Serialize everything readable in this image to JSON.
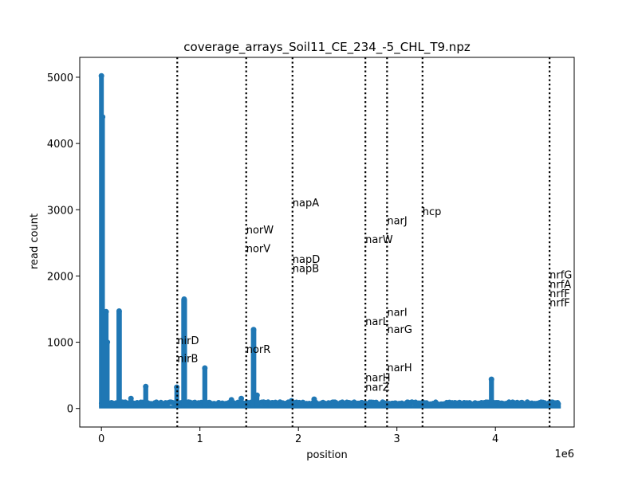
{
  "chart_data": {
    "type": "scatter",
    "title": "coverage_arrays_Soil11_CE_234_-5_CHL_T9.npz",
    "xlabel": "position",
    "ylabel": "read count",
    "x_offset_label": "1e6",
    "xlim": [
      -220000,
      4800000
    ],
    "ylim": [
      -280,
      5300
    ],
    "xticks": [
      {
        "value": 0,
        "label": "0"
      },
      {
        "value": 1000000,
        "label": "1"
      },
      {
        "value": 2000000,
        "label": "2"
      },
      {
        "value": 3000000,
        "label": "3"
      },
      {
        "value": 4000000,
        "label": "4"
      }
    ],
    "yticks": [
      {
        "value": 0,
        "label": "0"
      },
      {
        "value": 1000,
        "label": "1000"
      },
      {
        "value": 2000,
        "label": "2000"
      },
      {
        "value": 3000,
        "label": "3000"
      },
      {
        "value": 4000,
        "label": "4000"
      },
      {
        "value": 5000,
        "label": "5000"
      }
    ],
    "series_color": "#1f77b4",
    "baseline": 25,
    "peaks": [
      {
        "x": 0,
        "y": 5020,
        "w": 8000
      },
      {
        "x": 12000,
        "y": 4400,
        "w": 6000
      },
      {
        "x": 30000,
        "y": 1200,
        "w": 8000
      },
      {
        "x": 48000,
        "y": 1460,
        "w": 8000
      },
      {
        "x": 60000,
        "y": 1000,
        "w": 6000
      },
      {
        "x": 180000,
        "y": 1470,
        "w": 14000
      },
      {
        "x": 300000,
        "y": 150,
        "w": 6000
      },
      {
        "x": 450000,
        "y": 330,
        "w": 10000
      },
      {
        "x": 765000,
        "y": 320,
        "w": 8000
      },
      {
        "x": 840000,
        "y": 1650,
        "w": 18000
      },
      {
        "x": 1050000,
        "y": 610,
        "w": 10000
      },
      {
        "x": 1320000,
        "y": 130,
        "w": 6000
      },
      {
        "x": 1420000,
        "y": 150,
        "w": 6000
      },
      {
        "x": 1545000,
        "y": 1190,
        "w": 14000
      },
      {
        "x": 1580000,
        "y": 200,
        "w": 6000
      },
      {
        "x": 1930000,
        "y": 115,
        "w": 6000
      },
      {
        "x": 2160000,
        "y": 140,
        "w": 6000
      },
      {
        "x": 2590000,
        "y": 70,
        "w": 6000
      },
      {
        "x": 3960000,
        "y": 440,
        "w": 10000
      }
    ],
    "gene_lines": [
      {
        "x": 770000,
        "genes": [
          {
            "name": "nirD",
            "y": 1030
          },
          {
            "name": "nirB",
            "y": 760
          }
        ]
      },
      {
        "x": 1470000,
        "genes": [
          {
            "name": "norW",
            "y": 2700
          },
          {
            "name": "norV",
            "y": 2420
          },
          {
            "name": "norR",
            "y": 900
          }
        ]
      },
      {
        "x": 1940000,
        "genes": [
          {
            "name": "napA",
            "y": 3110
          },
          {
            "name": "napD",
            "y": 2260
          },
          {
            "name": "napB",
            "y": 2120
          }
        ]
      },
      {
        "x": 2680000,
        "genes": [
          {
            "name": "narW",
            "y": 2560
          },
          {
            "name": "narL",
            "y": 1320
          },
          {
            "name": "narH",
            "y": 470
          },
          {
            "name": "narZ",
            "y": 330
          }
        ]
      },
      {
        "x": 2900000,
        "genes": [
          {
            "name": "narJ",
            "y": 2840
          },
          {
            "name": "narI",
            "y": 1460
          },
          {
            "name": "narG",
            "y": 1200
          },
          {
            "name": "narH",
            "y": 620
          }
        ]
      },
      {
        "x": 3260000,
        "genes": [
          {
            "name": "hcp",
            "y": 2980
          }
        ]
      },
      {
        "x": 4550000,
        "genes": [
          {
            "name": "nrfG",
            "y": 2020
          },
          {
            "name": "nrfA",
            "y": 1880
          },
          {
            "name": "nrfF",
            "y": 1740
          },
          {
            "name": "nrfF",
            "y": 1600
          }
        ]
      }
    ]
  }
}
